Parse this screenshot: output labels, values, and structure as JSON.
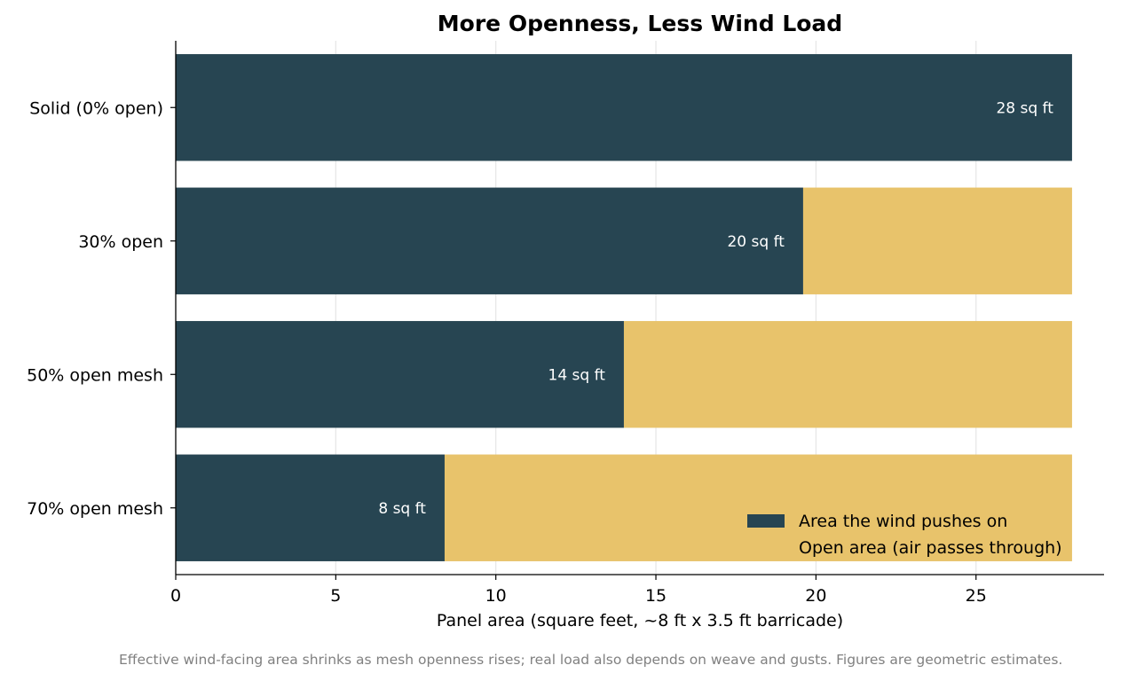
{
  "chart_data": {
    "type": "bar",
    "orientation": "horizontal",
    "stacked": true,
    "title": "More Openness, Less Wind Load",
    "xlabel": "Panel area (square feet, ~8 ft x 3.5 ft barricade)",
    "ylabel": "",
    "xlim": [
      0,
      29
    ],
    "xticks": [
      0,
      5,
      10,
      15,
      20,
      25
    ],
    "grid": "x",
    "legend_placement": "lower-right",
    "categories": [
      "Solid (0% open)",
      "30% open",
      "50% open mesh",
      "70% open mesh"
    ],
    "series": [
      {
        "name": "Area the wind pushes on",
        "color": "#274552",
        "values": [
          28,
          19.6,
          14,
          8.4
        ]
      },
      {
        "name": "Open area (air passes through)",
        "color": "#e8c36b",
        "values": [
          0,
          8.4,
          14,
          19.6
        ]
      }
    ],
    "data_labels": [
      "28 sq ft",
      "20 sq ft",
      "14 sq ft",
      "8 sq ft"
    ]
  },
  "footnote": "Effective wind-facing area shrinks as mesh openness rises; real load also depends on weave and gusts. Figures are geometric estimates."
}
